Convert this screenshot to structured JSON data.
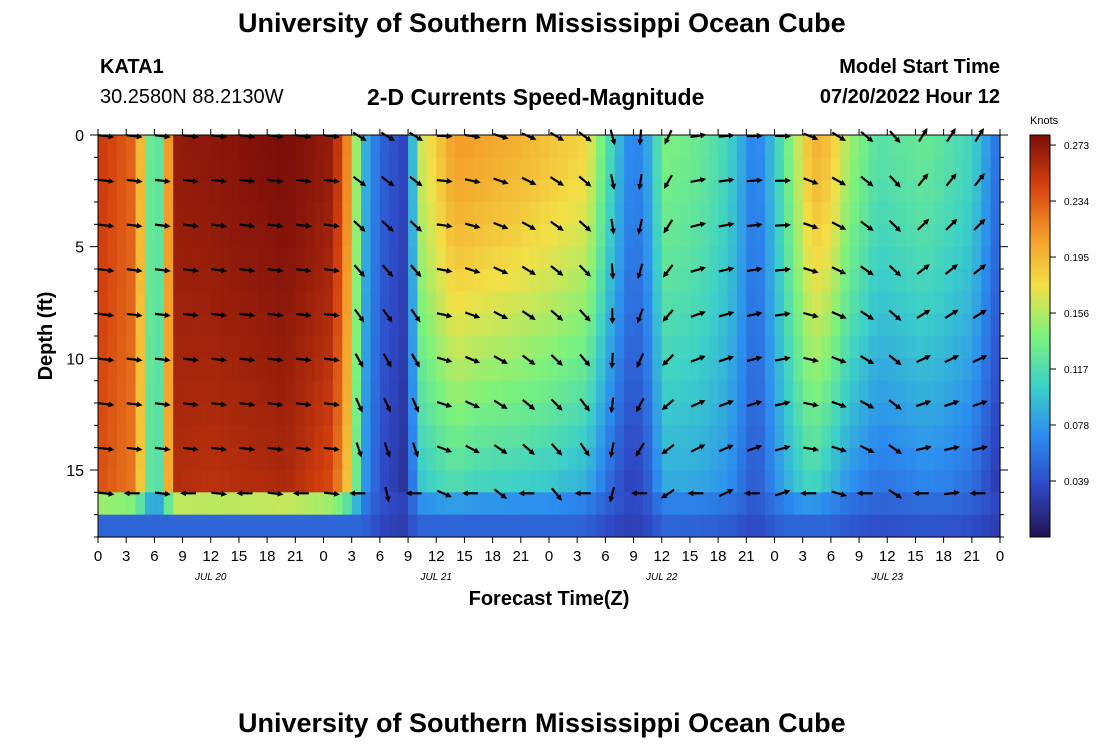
{
  "header": {
    "title": "University of Southern Mississippi Ocean Cube",
    "station": "KATA1",
    "coords": "30.2580N  88.2130W",
    "subtitle": "2-D Currents Speed-Magnitude",
    "model_label": "Model Start Time",
    "model_time": "07/20/2022 Hour 12",
    "footer_title": "University of Southern Mississippi Ocean Cube"
  },
  "colorbar": {
    "unit": "Knots",
    "ticks": [
      "0.273",
      "0.234",
      "0.195",
      "0.156",
      "0.117",
      "0.078",
      "0.039"
    ],
    "colors": [
      "#241452",
      "#2f47c4",
      "#2c8cf0",
      "#3cd0c8",
      "#7cf27c",
      "#f2e046",
      "#f49a28",
      "#d4400e",
      "#7a0e0a"
    ]
  },
  "chart_data": {
    "type": "heatmap",
    "xlabel": "Forecast Time(Z)",
    "ylabel": "Depth (ft)",
    "x_hours": [
      0,
      96
    ],
    "ylim": [
      0,
      18
    ],
    "y_ticks": [
      0,
      5,
      10,
      15
    ],
    "x_tick_labels": [
      "0",
      "3",
      "6",
      "9",
      "12",
      "15",
      "18",
      "21",
      "0",
      "3",
      "6",
      "9",
      "12",
      "15",
      "18",
      "21",
      "0",
      "3",
      "6",
      "9",
      "12",
      "15",
      "18",
      "21",
      "0",
      "3",
      "6",
      "9",
      "12",
      "15",
      "18",
      "21",
      "0"
    ],
    "date_labels": [
      {
        "label": "JUL 20",
        "hour": 12
      },
      {
        "label": "JUL 21",
        "hour": 36
      },
      {
        "label": "JUL 22",
        "hour": 60
      },
      {
        "label": "JUL 23",
        "hour": 84
      }
    ],
    "clim": [
      0.0,
      0.28
    ],
    "arrow_columns": [
      0,
      3,
      6,
      9,
      12,
      15,
      18,
      21,
      24,
      27,
      30,
      33,
      36,
      39,
      42,
      45,
      48,
      51,
      54,
      57,
      60,
      63,
      66,
      69,
      72,
      75,
      78,
      81,
      84,
      87,
      90,
      93
    ],
    "arrow_depths": [
      0,
      2,
      4,
      6,
      8,
      10,
      12,
      14,
      16
    ],
    "time_profile": [
      [
        0,
        0.25
      ],
      [
        4,
        0.23
      ],
      [
        5,
        0.16
      ],
      [
        6,
        0.1
      ],
      [
        7,
        0.15
      ],
      [
        8,
        0.27
      ],
      [
        20,
        0.28
      ],
      [
        25,
        0.27
      ],
      [
        27,
        0.2
      ],
      [
        28,
        0.1
      ],
      [
        30,
        0.05
      ],
      [
        33,
        0.03
      ],
      [
        34,
        0.16
      ],
      [
        38,
        0.21
      ],
      [
        44,
        0.2
      ],
      [
        52,
        0.18
      ],
      [
        55,
        0.1
      ],
      [
        57,
        0.06
      ],
      [
        59,
        0.09
      ],
      [
        60,
        0.14
      ],
      [
        64,
        0.13
      ],
      [
        67,
        0.11
      ],
      [
        70,
        0.06
      ],
      [
        72,
        0.1
      ],
      [
        76,
        0.2
      ],
      [
        78,
        0.19
      ],
      [
        80,
        0.15
      ],
      [
        83,
        0.12
      ],
      [
        88,
        0.13
      ],
      [
        93,
        0.11
      ],
      [
        96,
        0.05
      ]
    ],
    "depth_decay": [
      [
        0,
        0.05
      ],
      [
        4,
        0.04
      ],
      [
        8,
        0.05
      ],
      [
        12,
        0.08
      ],
      [
        20,
        0.08
      ],
      [
        28,
        0.16
      ],
      [
        34,
        0.45
      ],
      [
        40,
        0.55
      ],
      [
        48,
        0.55
      ],
      [
        56,
        0.65
      ],
      [
        60,
        0.45
      ],
      [
        66,
        0.4
      ],
      [
        72,
        0.35
      ],
      [
        78,
        0.6
      ],
      [
        84,
        0.6
      ],
      [
        90,
        0.55
      ],
      [
        96,
        0.6
      ]
    ],
    "bottom_cutoff": 15.5
  }
}
